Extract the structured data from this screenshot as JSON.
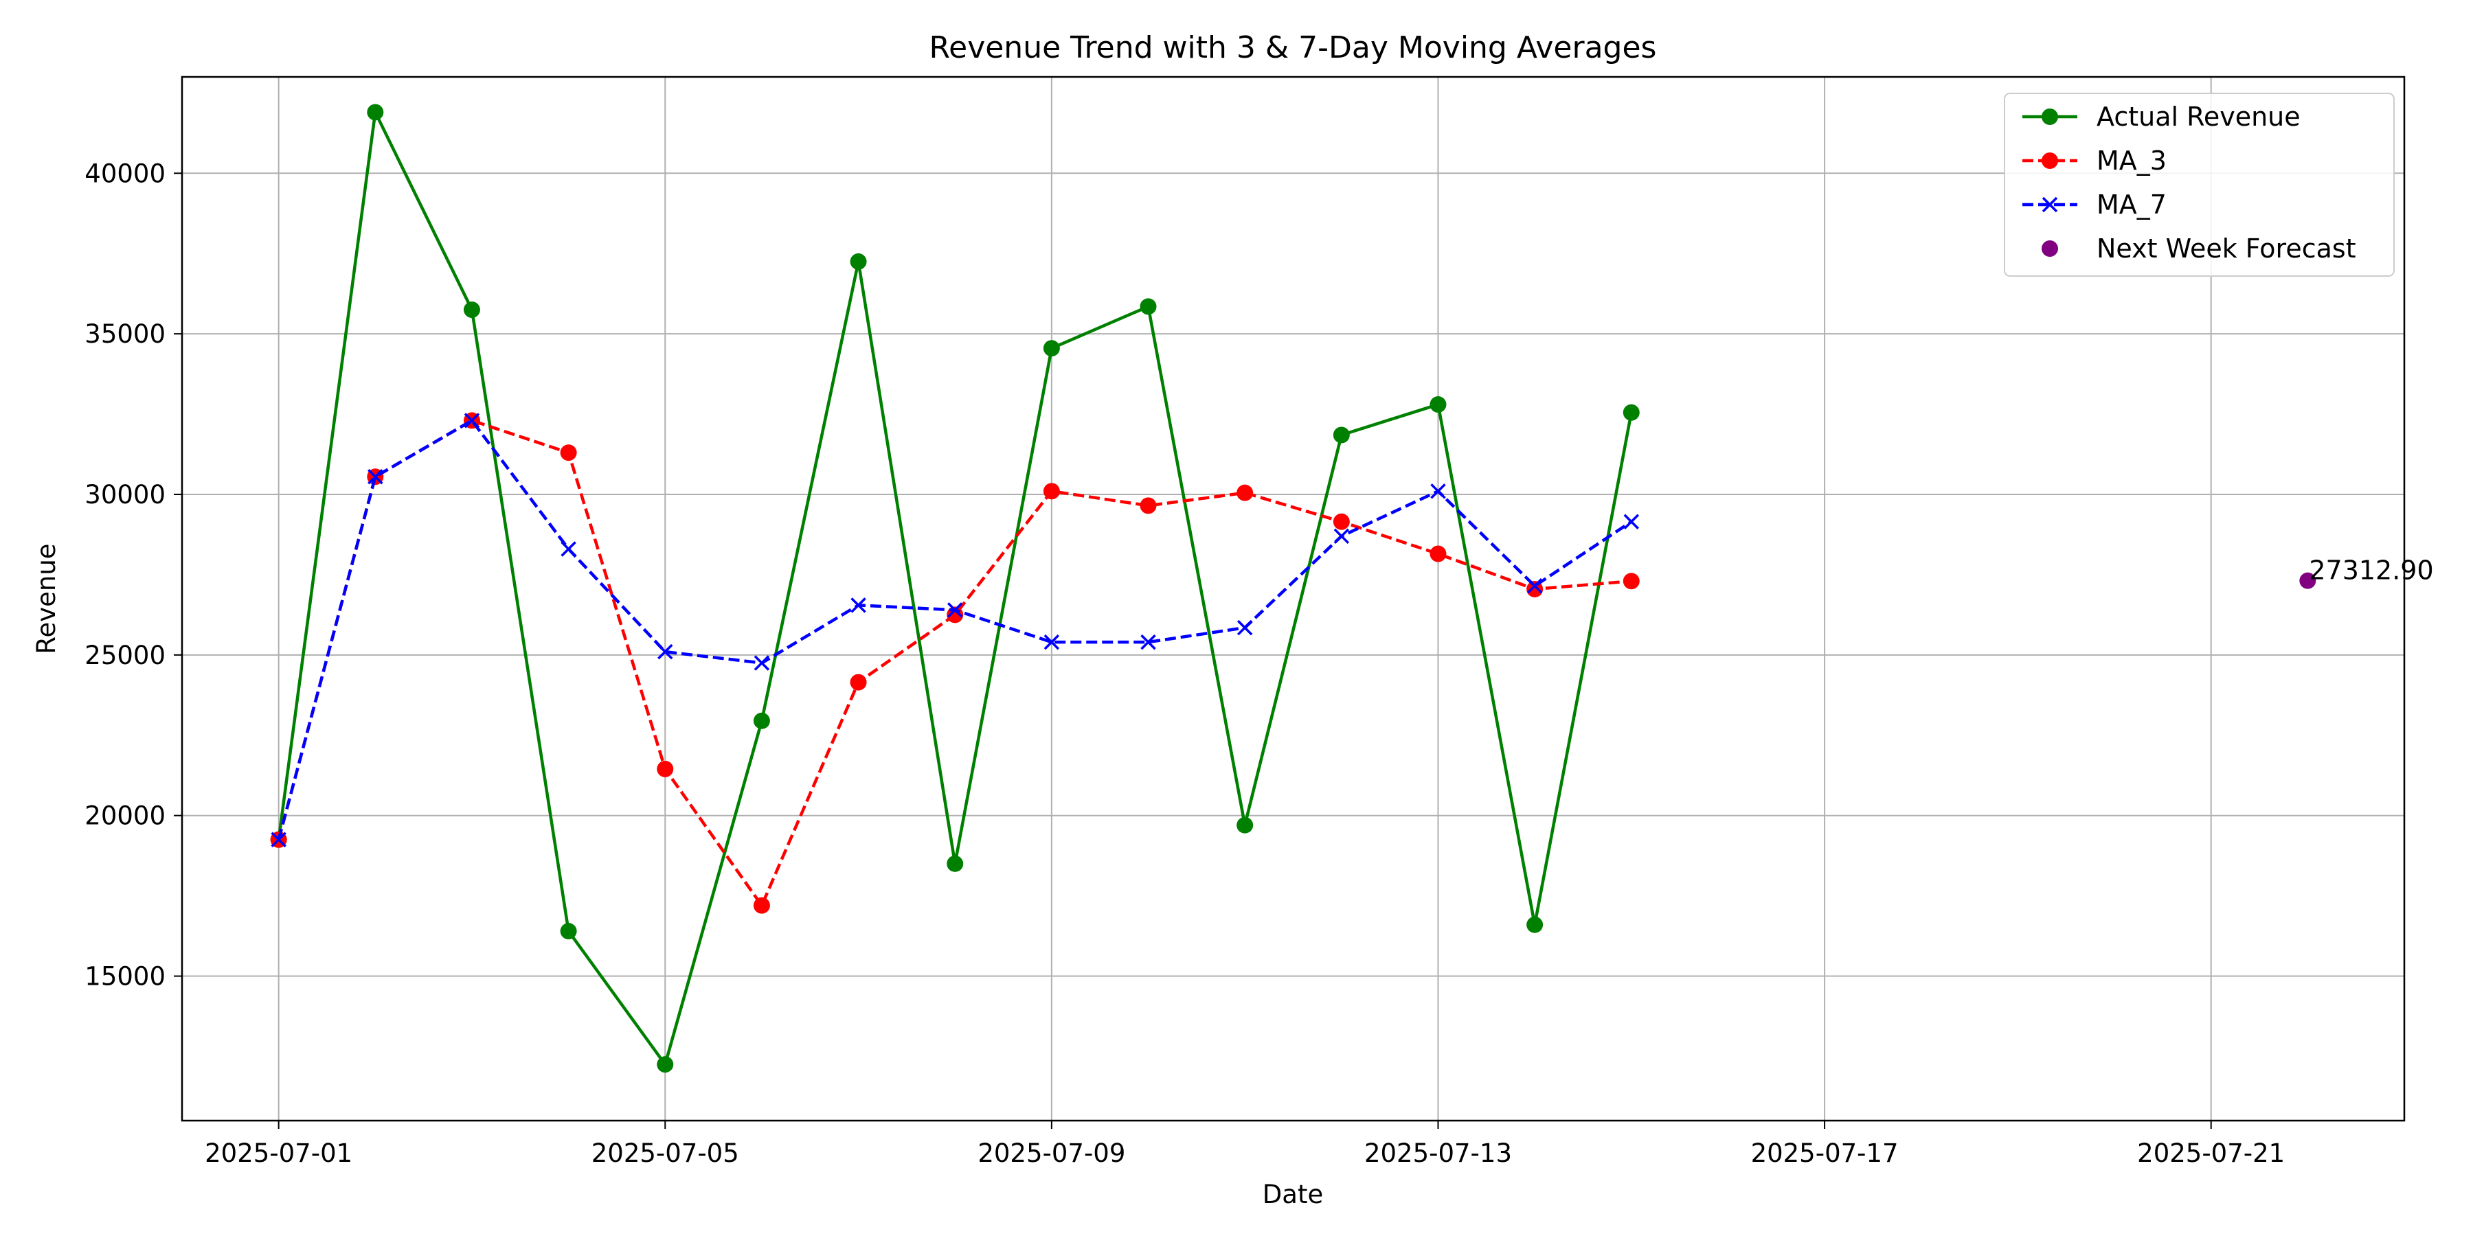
{
  "chart_data": {
    "type": "line",
    "title": "Revenue Trend with 3 & 7-Day Moving Averages",
    "xlabel": "Date",
    "ylabel": "Revenue",
    "x_dates": [
      "2025-07-01",
      "2025-07-02",
      "2025-07-03",
      "2025-07-04",
      "2025-07-05",
      "2025-07-06",
      "2025-07-07",
      "2025-07-08",
      "2025-07-09",
      "2025-07-10",
      "2025-07-11",
      "2025-07-12",
      "2025-07-13",
      "2025-07-14",
      "2025-07-15"
    ],
    "xlim": [
      "2025-06-30",
      "2025-07-23"
    ],
    "ylim": [
      10500,
      43000
    ],
    "xticks": [
      "2025-07-01",
      "2025-07-05",
      "2025-07-09",
      "2025-07-13",
      "2025-07-17",
      "2025-07-21"
    ],
    "yticks": [
      15000,
      20000,
      25000,
      30000,
      35000,
      40000
    ],
    "grid": true,
    "legend_position": "top-right",
    "series": [
      {
        "name": "Actual Revenue",
        "color": "#008000",
        "line_style": "solid",
        "marker": "circle",
        "values": [
          19250,
          41900,
          35750,
          16400,
          12250,
          22950,
          37250,
          18500,
          34550,
          35850,
          19700,
          31850,
          32800,
          16600,
          32550
        ]
      },
      {
        "name": "MA_3",
        "color": "#ff0000",
        "line_style": "dashed",
        "marker": "circle",
        "values": [
          19250,
          30550,
          32300,
          31300,
          21450,
          17200,
          24150,
          26250,
          30100,
          29650,
          30050,
          29150,
          28150,
          27050,
          27300
        ]
      },
      {
        "name": "MA_7",
        "color": "#0000ff",
        "line_style": "dashed",
        "marker": "x",
        "values": [
          19250,
          30550,
          32300,
          28300,
          25100,
          24750,
          26550,
          26400,
          25400,
          25400,
          25850,
          28700,
          30100,
          27150,
          29150
        ]
      }
    ],
    "forecast": {
      "name": "Next Week Forecast",
      "color": "#800080",
      "marker": "circle",
      "date": "2025-07-22",
      "value": 27312.9,
      "label": "27312.90"
    }
  }
}
